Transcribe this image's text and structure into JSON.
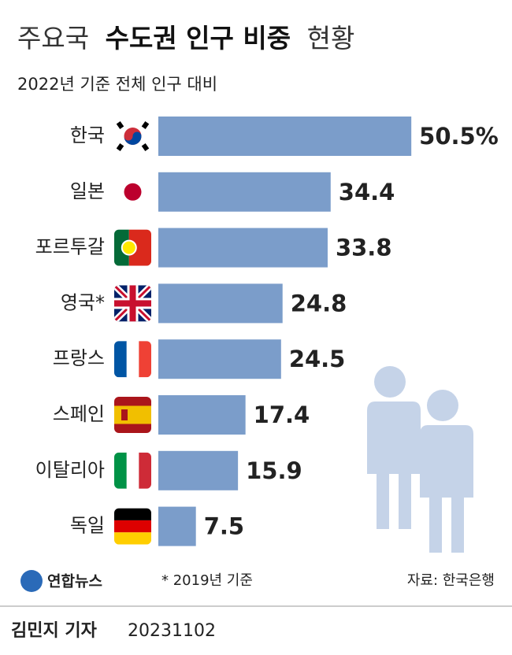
{
  "chart_data": {
    "type": "bar",
    "orientation": "horizontal",
    "title": [
      "주요국",
      "수도권 인구 비중",
      "현황"
    ],
    "subtitle": "2022년 기준 전체 인구 대비",
    "categories": [
      "한국",
      "일본",
      "포르투갈",
      "영국*",
      "프랑스",
      "스페인",
      "이탈리아",
      "독일"
    ],
    "values": [
      50.5,
      34.4,
      33.8,
      24.8,
      24.5,
      17.4,
      15.9,
      7.5
    ],
    "value_labels": [
      "50.5%",
      "34.4",
      "33.8",
      "24.8",
      "24.5",
      "17.4",
      "15.9",
      "7.5"
    ],
    "color": "#7b9dca",
    "footnote": "* 2019년 기준",
    "source": "자료: 한국은행",
    "logo": "연합뉴스",
    "byline": "김민지 기자",
    "date": "20231102"
  }
}
